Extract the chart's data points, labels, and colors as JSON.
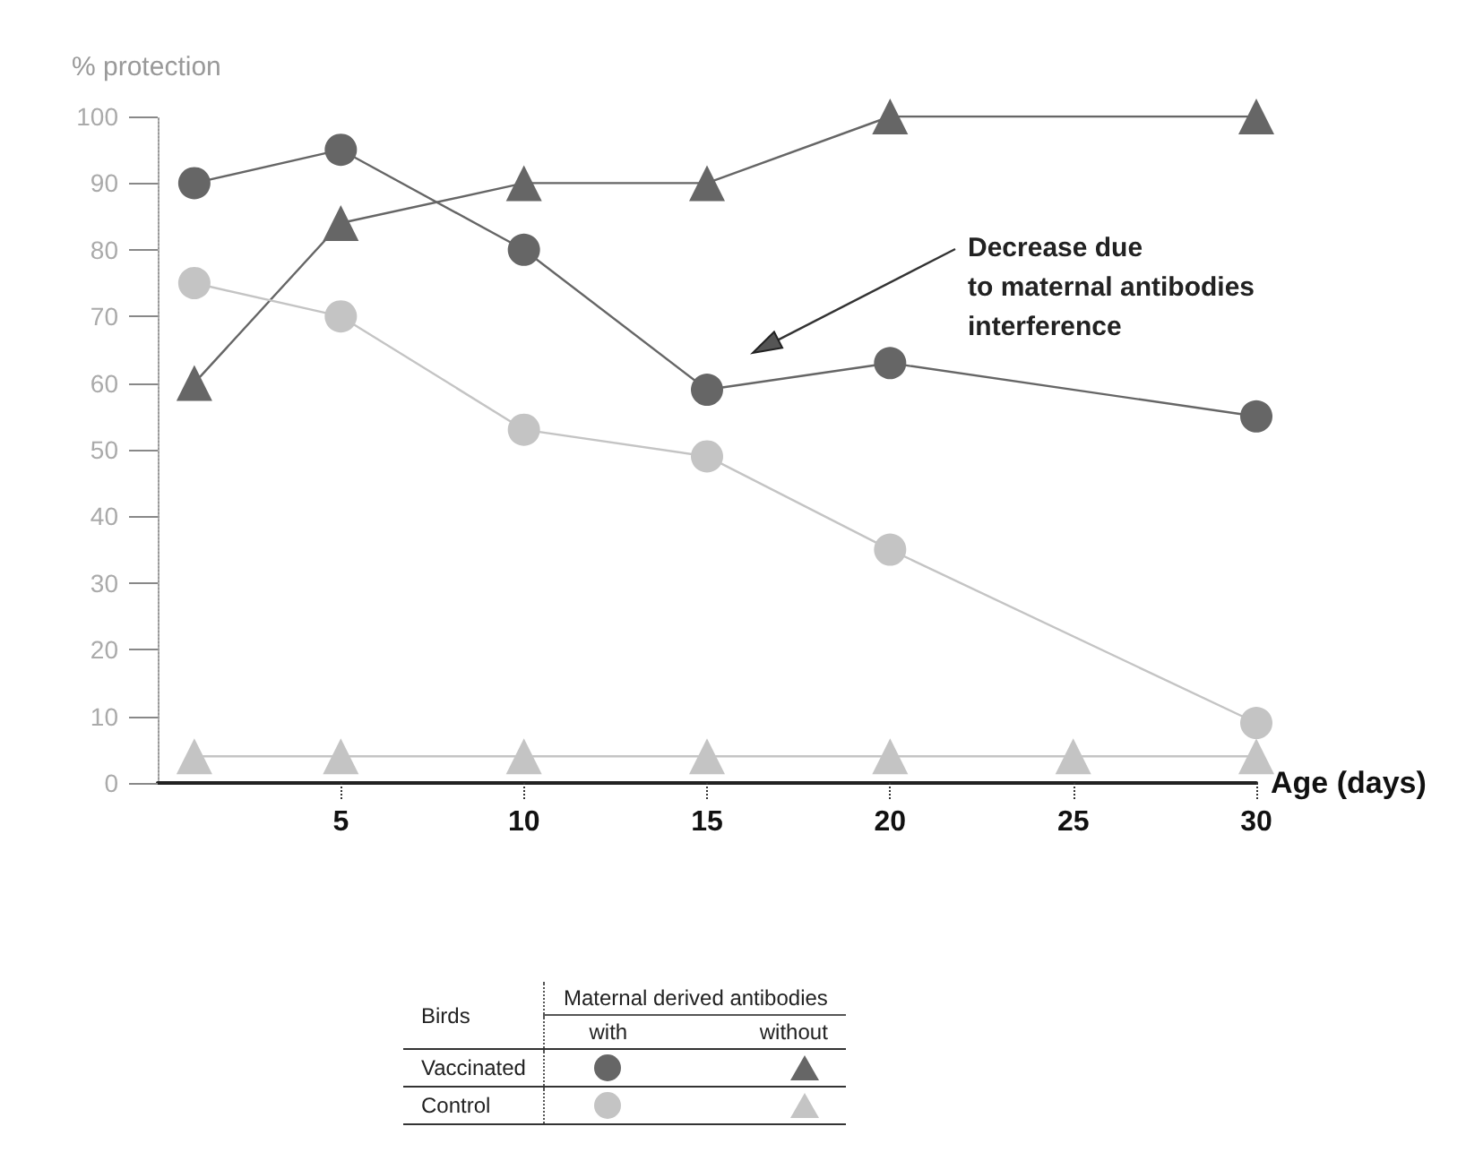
{
  "chart_data": {
    "type": "line",
    "xlabel": "Age (days)",
    "ylabel": "% protection",
    "xlim": [
      0,
      30
    ],
    "xticks": [
      5,
      10,
      15,
      20,
      25,
      30
    ],
    "ylim": [
      0,
      100
    ],
    "yticks": [
      0,
      10,
      20,
      30,
      40,
      50,
      60,
      70,
      80,
      90,
      100
    ],
    "grid": false,
    "annotations": [
      "Decrease due\nto maternal antibodies\ninterference",
      "Birds",
      "Maternal derived antibodies",
      "with",
      "without",
      "Vaccinated",
      "Control"
    ],
    "series": [
      {
        "color": "#666666",
        "marker": "circle",
        "x": [
          1,
          5,
          10,
          15,
          20,
          30
        ],
        "values": [
          90,
          95,
          80,
          59,
          63,
          55
        ]
      },
      {
        "color": "#666666",
        "marker": "triangle",
        "x": [
          1,
          5,
          10,
          15,
          20,
          30
        ],
        "values": [
          60,
          84,
          90,
          90,
          100,
          100
        ]
      },
      {
        "color": "#c4c4c4",
        "marker": "circle",
        "x": [
          1,
          5,
          10,
          15,
          20,
          30
        ],
        "values": [
          75,
          70,
          53,
          49,
          35,
          9
        ]
      },
      {
        "color": "#c4c4c4",
        "marker": "triangle",
        "x": [
          1,
          5,
          10,
          15,
          20,
          25,
          30
        ],
        "values": [
          4,
          4,
          4,
          4,
          4,
          4,
          4
        ]
      }
    ]
  }
}
